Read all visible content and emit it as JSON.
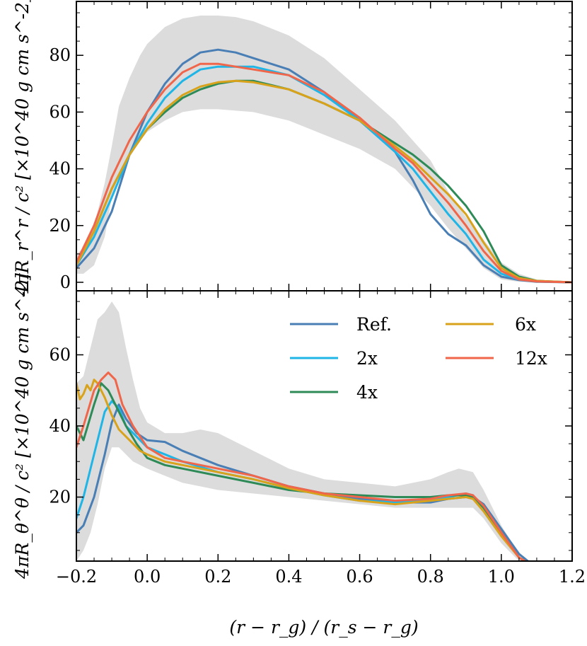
{
  "chart_data": [
    {
      "panel": "top",
      "type": "line",
      "ylabel": "4πR_r^r / c² [×10^40 g cm s^-2]",
      "xlim": [
        -0.2,
        1.2
      ],
      "ylim": [
        -3,
        99
      ],
      "yticks": [
        0,
        20,
        40,
        60,
        80
      ],
      "ytick_labels": [
        "0",
        "20",
        "40",
        "60",
        "80"
      ],
      "band": {
        "x": [
          -0.2,
          -0.18,
          -0.15,
          -0.12,
          -0.1,
          -0.08,
          -0.05,
          -0.02,
          0.0,
          0.05,
          0.1,
          0.15,
          0.2,
          0.25,
          0.3,
          0.4,
          0.5,
          0.6,
          0.7,
          0.8,
          0.85,
          0.9,
          0.95,
          1.0,
          1.05,
          1.1,
          1.2
        ],
        "upper": [
          10,
          12,
          20,
          35,
          48,
          62,
          72,
          80,
          84,
          90,
          93,
          94,
          94,
          93.5,
          92,
          87,
          79,
          68,
          57,
          43,
          32,
          23,
          15,
          7,
          3,
          1,
          0
        ],
        "lower": [
          3,
          3,
          6,
          16,
          30,
          38,
          44,
          50,
          53,
          57,
          60,
          61,
          61,
          60.5,
          60,
          57,
          52,
          47,
          40,
          27,
          19,
          12,
          5,
          1,
          0.2,
          0,
          0
        ]
      },
      "series": [
        {
          "name": "Ref.",
          "color": "#4a7fb5",
          "x": [
            -0.2,
            -0.15,
            -0.1,
            -0.05,
            0.0,
            0.05,
            0.1,
            0.15,
            0.2,
            0.25,
            0.3,
            0.4,
            0.5,
            0.6,
            0.7,
            0.75,
            0.8,
            0.85,
            0.9,
            0.95,
            1.0,
            1.05,
            1.1,
            1.2
          ],
          "y": [
            5,
            12,
            25,
            45,
            60,
            70,
            77,
            81,
            82,
            81,
            79,
            75,
            67,
            57,
            46,
            36,
            24,
            17,
            13,
            6,
            2,
            0.8,
            0.2,
            0
          ]
        },
        {
          "name": "2x",
          "color": "#1fb5e6",
          "x": [
            -0.2,
            -0.15,
            -0.1,
            -0.05,
            0.0,
            0.05,
            0.1,
            0.15,
            0.2,
            0.25,
            0.3,
            0.4,
            0.5,
            0.6,
            0.7,
            0.75,
            0.8,
            0.85,
            0.9,
            0.95,
            1.0,
            1.05,
            1.1,
            1.2
          ],
          "y": [
            6,
            16,
            30,
            45,
            56,
            65,
            71,
            75,
            76,
            76,
            76,
            73,
            66,
            57,
            46,
            40,
            32,
            24,
            17,
            8,
            3,
            1,
            0.3,
            0
          ]
        },
        {
          "name": "4x",
          "color": "#2e8b57",
          "x": [
            -0.2,
            -0.15,
            -0.1,
            -0.05,
            0.0,
            0.05,
            0.1,
            0.15,
            0.2,
            0.25,
            0.3,
            0.4,
            0.5,
            0.6,
            0.7,
            0.75,
            0.8,
            0.85,
            0.9,
            0.95,
            1.0,
            1.05,
            1.1,
            1.2
          ],
          "y": [
            6,
            18,
            33,
            45,
            54,
            60,
            65,
            68,
            70,
            71,
            71,
            68,
            63,
            57,
            49,
            45,
            40,
            34,
            27,
            18,
            6,
            2,
            0.5,
            0
          ]
        },
        {
          "name": "6x",
          "color": "#d9a21b",
          "x": [
            -0.2,
            -0.15,
            -0.1,
            -0.05,
            0.0,
            0.05,
            0.1,
            0.15,
            0.2,
            0.25,
            0.3,
            0.4,
            0.5,
            0.6,
            0.7,
            0.75,
            0.8,
            0.85,
            0.9,
            0.95,
            1.0,
            1.05,
            1.1,
            1.2
          ],
          "y": [
            6,
            18,
            33,
            45,
            54,
            61,
            66,
            69,
            70.5,
            71,
            70.5,
            68,
            63,
            57,
            48,
            43,
            37,
            31,
            24,
            14,
            5,
            1.5,
            0.5,
            0
          ]
        },
        {
          "name": "12x",
          "color": "#f0664a",
          "x": [
            -0.2,
            -0.15,
            -0.1,
            -0.05,
            0.0,
            0.05,
            0.1,
            0.15,
            0.2,
            0.25,
            0.3,
            0.4,
            0.5,
            0.6,
            0.7,
            0.75,
            0.8,
            0.85,
            0.9,
            0.95,
            1.0,
            1.05,
            1.1,
            1.2
          ],
          "y": [
            7,
            20,
            37,
            50,
            60,
            68,
            74,
            77,
            77,
            76,
            75,
            73,
            67,
            58,
            47,
            42,
            35,
            28,
            20,
            11,
            4,
            1,
            0.3,
            0
          ]
        }
      ]
    },
    {
      "panel": "bottom",
      "type": "line",
      "ylabel": "4πR_θ^θ / c² [×10^40 g cm s^-2]",
      "xlabel": "(r − r_g) / (r_s − r_g)",
      "xlim": [
        -0.2,
        1.2
      ],
      "xticks": [
        -0.2,
        0.0,
        0.2,
        0.4,
        0.6,
        0.8,
        1.0,
        1.2
      ],
      "xtick_labels": [
        "−0.2",
        "0.0",
        "0.2",
        "0.4",
        "0.6",
        "0.8",
        "1.0",
        "1.2"
      ],
      "ylim": [
        2,
        78
      ],
      "yticks": [
        20,
        40,
        60
      ],
      "ytick_labels": [
        "20",
        "40",
        "60"
      ],
      "band": {
        "x": [
          -0.2,
          -0.18,
          -0.16,
          -0.14,
          -0.12,
          -0.1,
          -0.08,
          -0.06,
          -0.04,
          -0.02,
          0.0,
          0.05,
          0.1,
          0.15,
          0.2,
          0.3,
          0.4,
          0.5,
          0.6,
          0.7,
          0.8,
          0.85,
          0.88,
          0.92,
          0.95,
          1.0,
          1.05,
          1.1
        ],
        "upper": [
          52,
          54,
          62,
          70,
          72,
          75,
          72,
          62,
          53,
          45,
          41,
          38,
          38,
          39,
          38,
          33,
          28,
          25,
          24,
          23,
          25,
          27,
          28,
          27,
          22,
          12,
          4,
          0
        ],
        "lower": [
          2,
          5,
          10,
          18,
          28,
          34,
          34,
          32,
          30,
          29,
          28,
          26,
          24,
          23,
          22,
          21,
          20,
          19,
          18,
          17,
          17,
          17,
          17,
          17,
          14,
          7,
          2,
          0
        ]
      },
      "series": [
        {
          "name": "Ref.",
          "color": "#4a7fb5",
          "x": [
            -0.2,
            -0.18,
            -0.15,
            -0.12,
            -0.1,
            -0.08,
            -0.06,
            -0.03,
            0.0,
            0.05,
            0.1,
            0.2,
            0.3,
            0.4,
            0.5,
            0.6,
            0.7,
            0.8,
            0.85,
            0.9,
            0.92,
            0.95,
            1.0,
            1.05,
            1.1
          ],
          "y": [
            10,
            12,
            20,
            32,
            41,
            46,
            42,
            38,
            36,
            35.5,
            33,
            29,
            26,
            23,
            21,
            19.5,
            18.5,
            18.5,
            19.5,
            20,
            20,
            18,
            11,
            4,
            0
          ]
        },
        {
          "name": "2x",
          "color": "#1fb5e6",
          "x": [
            -0.2,
            -0.18,
            -0.15,
            -0.12,
            -0.1,
            -0.08,
            -0.06,
            -0.03,
            0.0,
            0.05,
            0.1,
            0.2,
            0.3,
            0.4,
            0.5,
            0.6,
            0.7,
            0.8,
            0.85,
            0.9,
            0.92,
            0.95,
            1.0,
            1.05,
            1.1
          ],
          "y": [
            14,
            20,
            32,
            44,
            47,
            45,
            40,
            37,
            34,
            32,
            30,
            27,
            25,
            22.5,
            20.5,
            19,
            18.5,
            19,
            20,
            21,
            20.5,
            17,
            10,
            3,
            0
          ]
        },
        {
          "name": "4x",
          "color": "#2e8b57",
          "x": [
            -0.2,
            -0.18,
            -0.15,
            -0.13,
            -0.11,
            -0.09,
            -0.06,
            -0.03,
            0.0,
            0.05,
            0.1,
            0.2,
            0.3,
            0.4,
            0.5,
            0.6,
            0.7,
            0.8,
            0.85,
            0.9,
            0.92,
            0.95,
            1.0,
            1.05,
            1.1
          ],
          "y": [
            40,
            36,
            46,
            52,
            50,
            46,
            40,
            35,
            31,
            29,
            28,
            26,
            24,
            22,
            21,
            20.5,
            20,
            20,
            20.5,
            20.5,
            20,
            17,
            10,
            3,
            0
          ]
        },
        {
          "name": "6x",
          "color": "#d9a21b",
          "x": [
            -0.2,
            -0.19,
            -0.18,
            -0.17,
            -0.16,
            -0.15,
            -0.14,
            -0.12,
            -0.1,
            -0.08,
            -0.05,
            -0.02,
            0.0,
            0.05,
            0.1,
            0.2,
            0.3,
            0.4,
            0.5,
            0.6,
            0.7,
            0.8,
            0.85,
            0.9,
            0.92,
            0.95,
            1.0,
            1.05,
            1.1
          ],
          "y": [
            52,
            47.5,
            49,
            51.5,
            50,
            53,
            52,
            48,
            43,
            39,
            36,
            33,
            32,
            30,
            29,
            27,
            25,
            22.5,
            20.5,
            19,
            18,
            19,
            19.5,
            20,
            19.5,
            16,
            9,
            3,
            0
          ]
        },
        {
          "name": "12x",
          "color": "#f0664a",
          "x": [
            -0.2,
            -0.18,
            -0.15,
            -0.13,
            -0.11,
            -0.09,
            -0.07,
            -0.04,
            0.0,
            0.05,
            0.1,
            0.2,
            0.3,
            0.4,
            0.5,
            0.6,
            0.7,
            0.8,
            0.85,
            0.9,
            0.92,
            0.95,
            1.0,
            1.05,
            1.1
          ],
          "y": [
            34,
            40,
            50,
            53,
            55,
            53,
            46,
            40,
            34,
            31,
            30,
            28,
            26,
            23,
            21,
            20,
            19,
            19.5,
            20.5,
            21,
            20.5,
            17.5,
            10,
            3,
            0
          ]
        }
      ],
      "legend": {
        "placement": "upper-right",
        "entries": [
          "Ref.",
          "2x",
          "4x",
          "6x",
          "12x"
        ]
      }
    }
  ]
}
